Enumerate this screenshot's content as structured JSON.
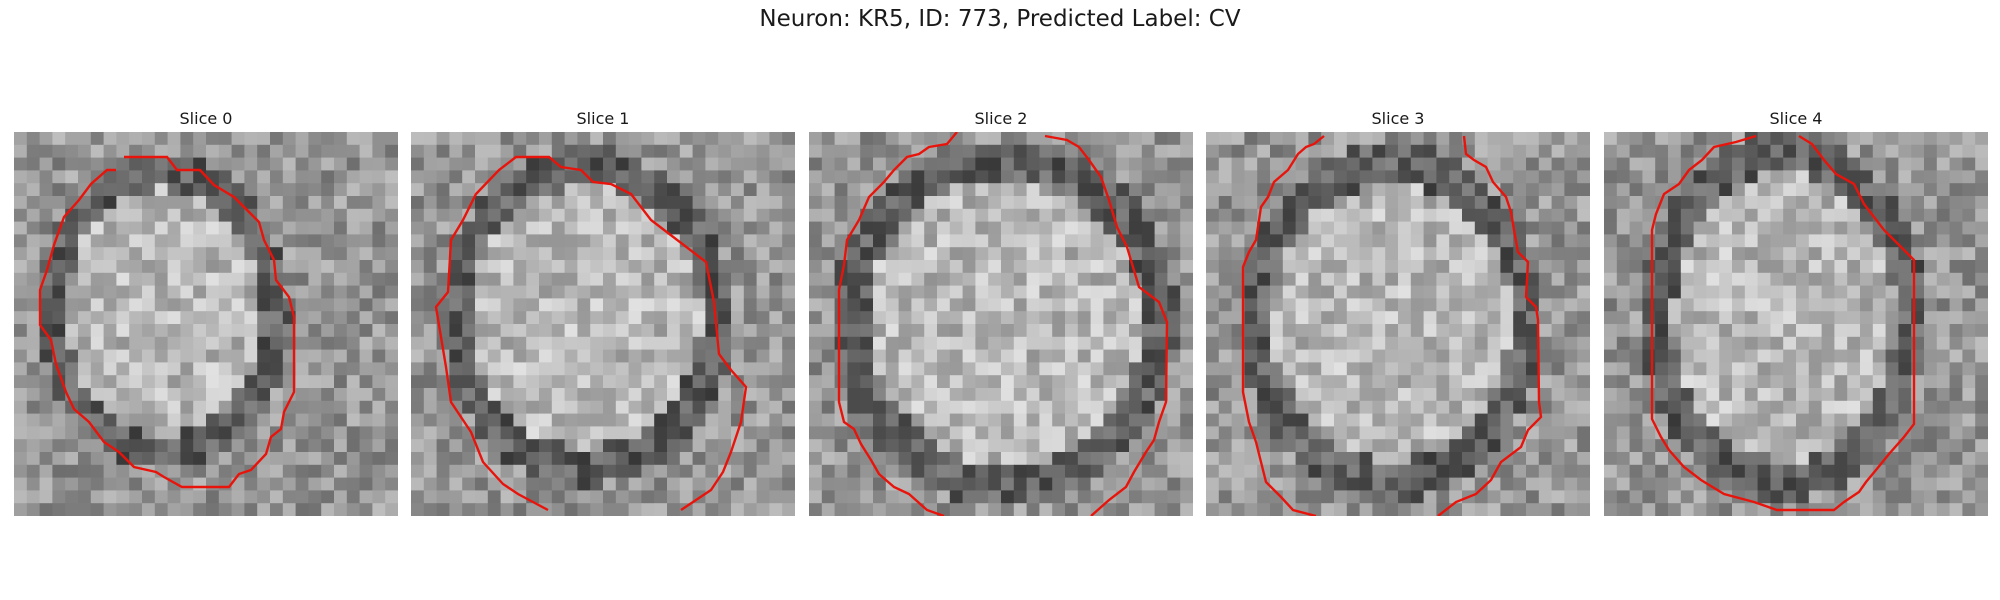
{
  "figure": {
    "title": "Neuron: KR5, ID: 773, Predicted Label: CV"
  },
  "panels": [
    {
      "title": "Slice 0"
    },
    {
      "title": "Slice 1"
    },
    {
      "title": "Slice 2"
    },
    {
      "title": "Slice 3"
    },
    {
      "title": "Slice 4"
    }
  ],
  "colors": {
    "contour": "#e8140c",
    "background": "#ffffff"
  }
}
